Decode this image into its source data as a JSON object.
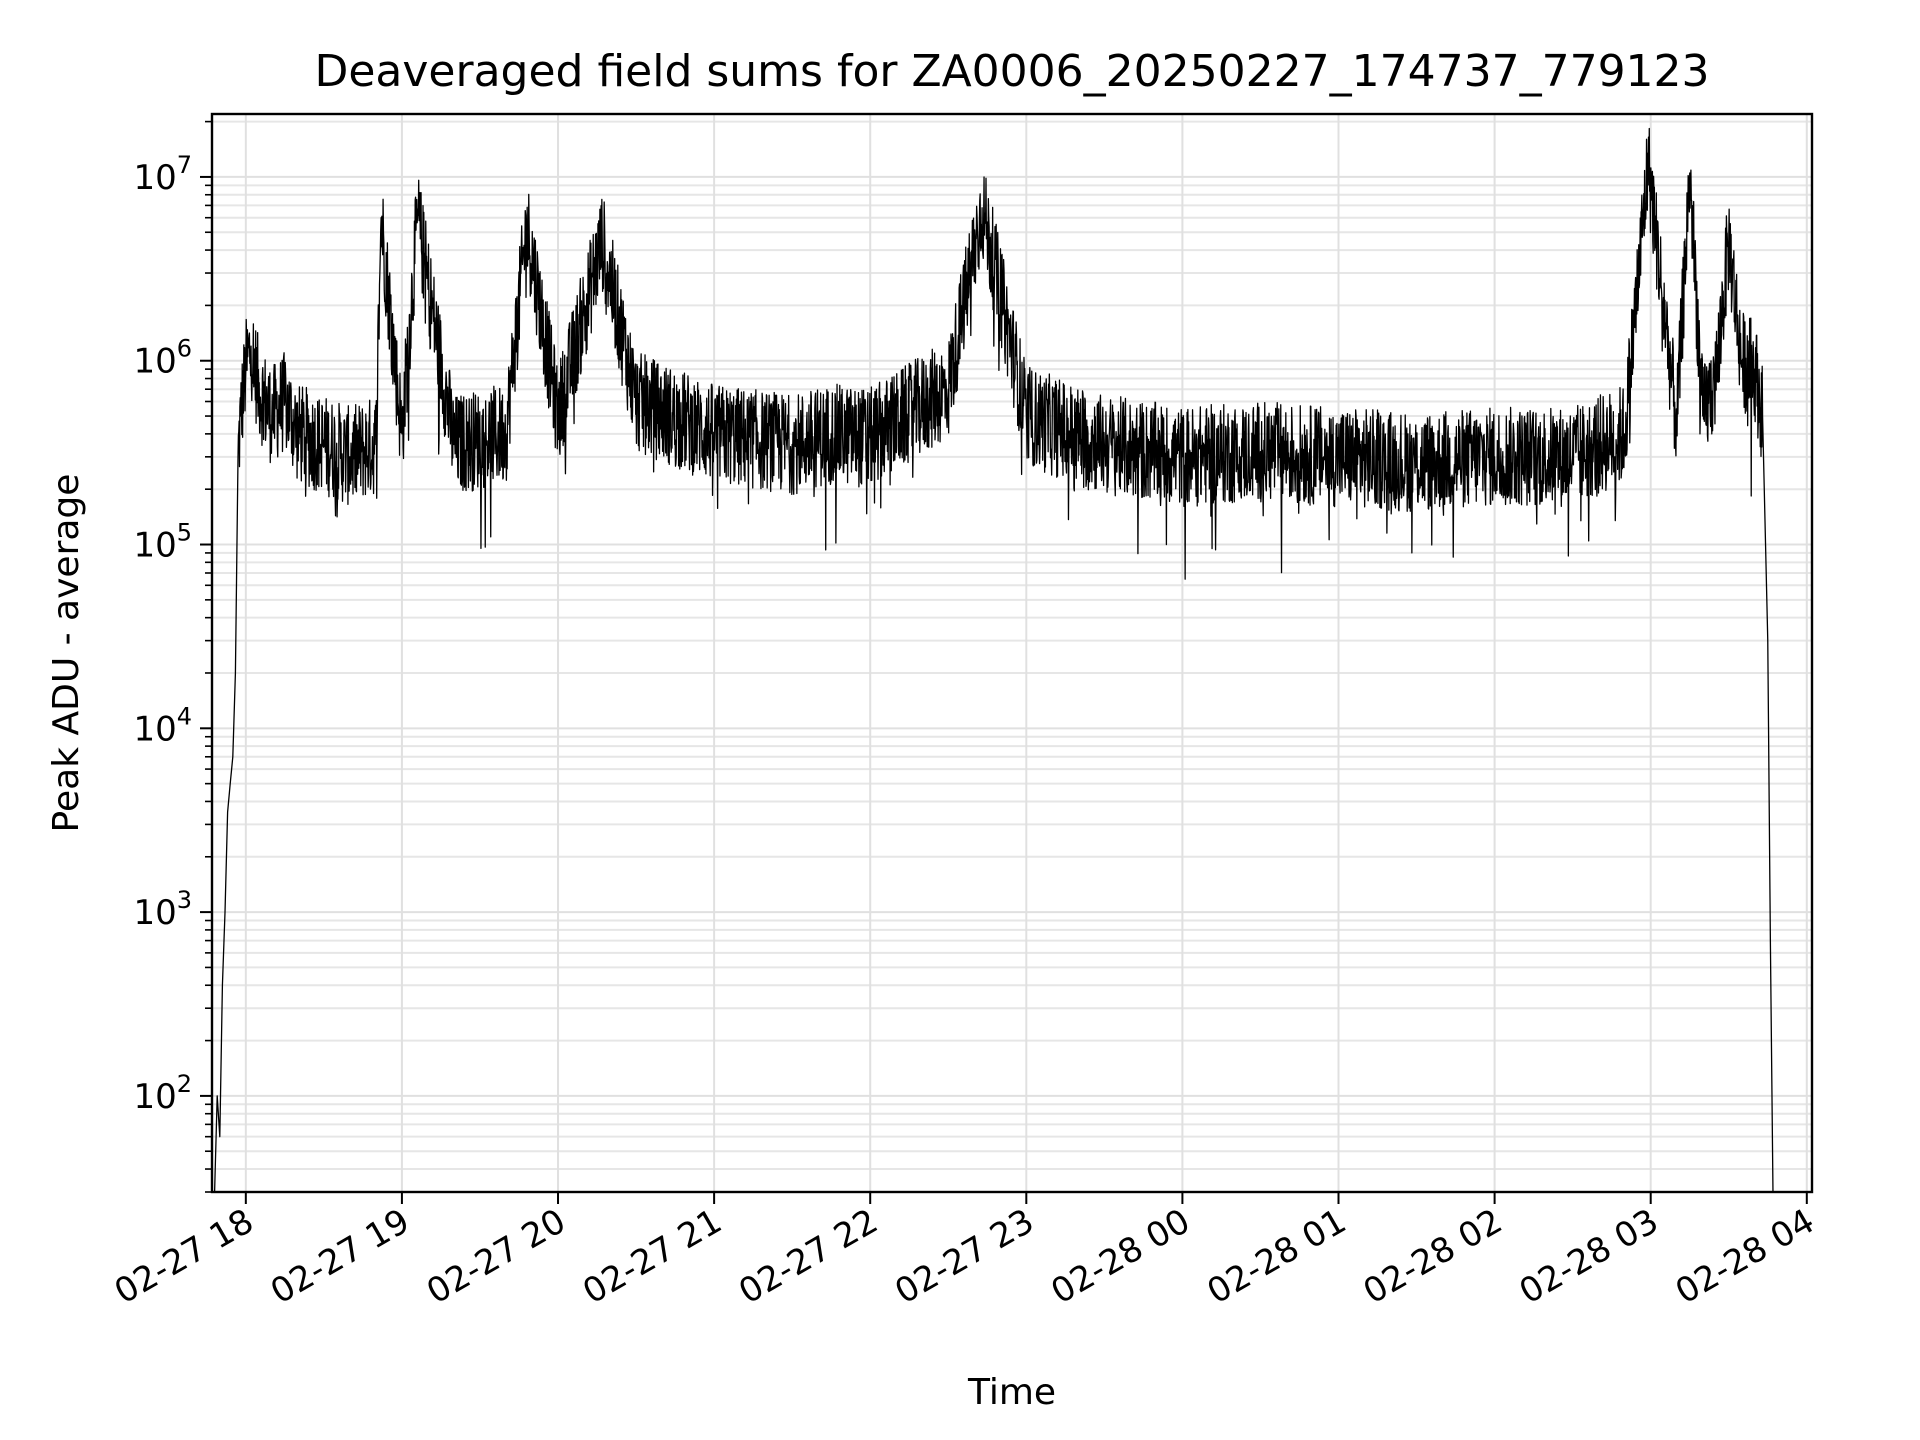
{
  "chart_data": {
    "type": "line",
    "title": "Deaveraged field sums for ZA0006_20250227_174737_779123",
    "xlabel": "Time",
    "ylabel": "Peak ADU - average",
    "yscale": "log",
    "grid": true,
    "xlim": [
      "2025-02-27 17:47",
      "2025-02-28 04:02"
    ],
    "ylim": [
      30,
      22000000
    ],
    "x_ticks": [
      {
        "value": "2025-02-27 18:00",
        "label": "02-27 18"
      },
      {
        "value": "2025-02-27 19:00",
        "label": "02-27 19"
      },
      {
        "value": "2025-02-27 20:00",
        "label": "02-27 20"
      },
      {
        "value": "2025-02-27 21:00",
        "label": "02-27 21"
      },
      {
        "value": "2025-02-27 22:00",
        "label": "02-27 22"
      },
      {
        "value": "2025-02-27 23:00",
        "label": "02-27 23"
      },
      {
        "value": "2025-02-28 00:00",
        "label": "02-28 00"
      },
      {
        "value": "2025-02-28 01:00",
        "label": "02-28 01"
      },
      {
        "value": "2025-02-28 02:00",
        "label": "02-28 02"
      },
      {
        "value": "2025-02-28 03:00",
        "label": "02-28 03"
      },
      {
        "value": "2025-02-28 04:00",
        "label": "02-28 04"
      }
    ],
    "y_ticks": [
      {
        "value": 100,
        "base": "10",
        "exp": "2"
      },
      {
        "value": 1000,
        "base": "10",
        "exp": "3"
      },
      {
        "value": 10000,
        "base": "10",
        "exp": "4"
      },
      {
        "value": 100000,
        "base": "10",
        "exp": "5"
      },
      {
        "value": 1000000,
        "base": "10",
        "exp": "6"
      },
      {
        "value": 10000000,
        "base": "10",
        "exp": "7"
      }
    ],
    "series": [
      {
        "color": "#000000",
        "x": [
          "2025-02-27 17:48",
          "2025-02-27 17:49",
          "2025-02-27 17:50",
          "2025-02-27 17:51",
          "2025-02-27 17:52",
          "2025-02-27 17:53",
          "2025-02-27 17:54",
          "2025-02-27 17:55",
          "2025-02-27 17:56",
          "2025-02-27 17:57",
          "2025-02-27 17:58",
          "2025-02-27 18:00",
          "2025-02-27 18:02",
          "2025-02-27 18:05",
          "2025-02-27 18:10",
          "2025-02-27 18:15",
          "2025-02-27 18:20",
          "2025-02-27 18:30",
          "2025-02-27 18:40",
          "2025-02-27 18:50",
          "2025-02-27 18:52",
          "2025-02-27 19:00",
          "2025-02-27 19:06",
          "2025-02-27 19:20",
          "2025-02-27 19:40",
          "2025-02-27 19:48",
          "2025-02-27 20:00",
          "2025-02-27 20:17",
          "2025-02-27 20:30",
          "2025-02-27 21:00",
          "2025-02-27 21:30",
          "2025-02-27 21:45",
          "2025-02-27 22:00",
          "2025-02-27 22:30",
          "2025-02-27 22:43",
          "2025-02-27 23:00",
          "2025-02-27 23:30",
          "2025-02-28 00:00",
          "2025-02-28 00:30",
          "2025-02-28 01:00",
          "2025-02-28 01:30",
          "2025-02-28 02:00",
          "2025-02-28 02:30",
          "2025-02-28 02:50",
          "2025-02-28 02:59",
          "2025-02-28 03:10",
          "2025-02-28 03:15",
          "2025-02-28 03:20",
          "2025-02-28 03:25",
          "2025-02-28 03:30",
          "2025-02-28 03:35",
          "2025-02-28 03:40",
          "2025-02-28 03:43",
          "2025-02-28 03:45",
          "2025-02-28 03:46",
          "2025-02-28 03:47"
        ],
        "values": [
          30,
          100,
          60,
          400,
          1000,
          3500,
          5000,
          7000,
          20000,
          300000,
          500000,
          900000,
          1200000,
          700000,
          500000,
          600000,
          400000,
          350000,
          300000,
          350000,
          6000000,
          400000,
          6000000,
          350000,
          400000,
          5500000,
          500000,
          4500000,
          600000,
          400000,
          350000,
          400000,
          380000,
          700000,
          6800000,
          500000,
          350000,
          300000,
          320000,
          300000,
          280000,
          300000,
          300000,
          400000,
          12000000,
          450000,
          10500000,
          500000,
          800000,
          4500000,
          1000000,
          900000,
          500000,
          30000,
          700,
          30
        ]
      }
    ]
  }
}
